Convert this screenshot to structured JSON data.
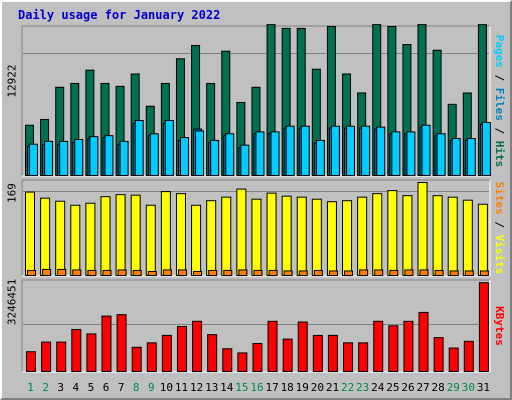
{
  "title": "Daily usage for January 2022",
  "colors": {
    "background": "#c0c0c0",
    "title": "#0000cc",
    "hits": "#007050",
    "files": "#00ccff",
    "pages": "#0080c0",
    "visits": "#ffff00",
    "sites": "#ff8000",
    "kbytes": "#ff0000",
    "weekend_day": "#00884a",
    "weekday": "#000000"
  },
  "chart_data": [
    {
      "type": "bar",
      "panel": "hits-files-pages",
      "tick_label": "12922",
      "tick_value": 12922,
      "ylim": [
        0,
        15800
      ],
      "right_label": {
        "pages": "Pages",
        "sep1": " / ",
        "files": "Files",
        "sep2": " / ",
        "hits": "Hits"
      },
      "categories": [
        "1",
        "2",
        "3",
        "4",
        "5",
        "6",
        "7",
        "8",
        "9",
        "10",
        "11",
        "12",
        "13",
        "14",
        "15",
        "16",
        "17",
        "18",
        "19",
        "20",
        "21",
        "22",
        "23",
        "24",
        "25",
        "26",
        "27",
        "28",
        "29",
        "30",
        "31"
      ],
      "series": [
        {
          "name": "Hits",
          "values": [
            5400,
            6000,
            9400,
            9800,
            11200,
            9800,
            9500,
            10800,
            7400,
            9800,
            12400,
            13800,
            9800,
            13200,
            7800,
            9400,
            16000,
            15600,
            15600,
            11300,
            15800,
            10800,
            8800,
            16000,
            15800,
            13900,
            16000,
            13300,
            7600,
            8800,
            16000
          ]
        },
        {
          "name": "Files",
          "values": [
            3400,
            3700,
            3700,
            3900,
            4200,
            4300,
            3700,
            5900,
            4500,
            5900,
            4100,
            4800,
            3800,
            4500,
            3300,
            4700,
            4700,
            5300,
            5300,
            3800,
            5300,
            5300,
            5300,
            5200,
            4700,
            4700,
            5400,
            4500,
            4000,
            4000,
            5700
          ]
        },
        {
          "name": "Pages",
          "values": [
            3200,
            3300,
            3400,
            3600,
            4000,
            4100,
            3400,
            5600,
            4300,
            5600,
            3800,
            5000,
            3600,
            4300,
            3000,
            4500,
            4500,
            5100,
            5100,
            3500,
            5100,
            5100,
            5100,
            5000,
            4500,
            4500,
            5200,
            4300,
            3800,
            3800,
            5500
          ]
        }
      ]
    },
    {
      "type": "bar",
      "panel": "visits-sites",
      "tick_label": "169",
      "tick_value": 169,
      "ylim": [
        0,
        190
      ],
      "right_label": {
        "sites": "Sites",
        "sep1": " / ",
        "visits": "Visits"
      },
      "series": [
        {
          "name": "Visits",
          "values": [
            167,
            155,
            149,
            141,
            145,
            158,
            162,
            161,
            141,
            168,
            164,
            141,
            150,
            157,
            173,
            153,
            165,
            159,
            157,
            153,
            148,
            150,
            157,
            164,
            170,
            160,
            186,
            160,
            157,
            151,
            143
          ]
        },
        {
          "name": "Sites",
          "values": [
            12,
            14,
            14,
            13,
            12,
            12,
            13,
            12,
            10,
            13,
            13,
            10,
            12,
            12,
            13,
            12,
            12,
            11,
            11,
            12,
            11,
            11,
            13,
            13,
            12,
            13,
            13,
            12,
            11,
            11,
            11
          ]
        }
      ]
    },
    {
      "type": "bar",
      "panel": "kbytes",
      "tick_label": "3246451",
      "tick_value": 3246451,
      "ylim": [
        0,
        6200000
      ],
      "right_label": {
        "kbytes": "KBytes"
      },
      "series": [
        {
          "name": "KBytes",
          "values": [
            1400000,
            2050000,
            2050000,
            2900000,
            2600000,
            3800000,
            3900000,
            1700000,
            2000000,
            2500000,
            3100000,
            3450000,
            2550000,
            1600000,
            1320000,
            1950000,
            3450000,
            2250000,
            3400000,
            2500000,
            2500000,
            2000000,
            2000000,
            3450000,
            3150000,
            3450000,
            4050000,
            2350000,
            1650000,
            2100000,
            6050000
          ]
        }
      ]
    }
  ]
}
